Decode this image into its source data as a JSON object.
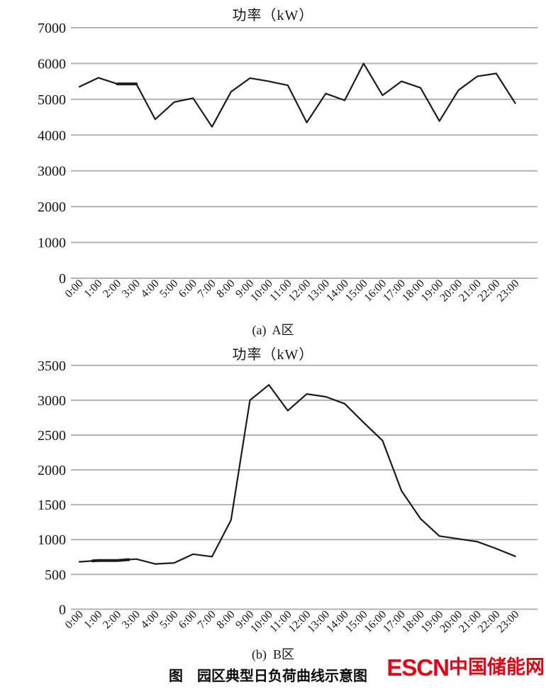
{
  "figure": {
    "caption": "图　园区典型日负荷曲线示意图"
  },
  "logo": {
    "escn": "ESCN",
    "cjk": "中国储能网",
    "color": "#e60012"
  },
  "chart_data": [
    {
      "type": "line",
      "title": "功率（kW）",
      "subtitle": "(a)  A区",
      "xlabel": "",
      "ylabel": "",
      "x": [
        "0:00",
        "1:00",
        "2:00",
        "3:00",
        "4:00",
        "5:00",
        "6:00",
        "7:00",
        "8:00",
        "9:00",
        "10:00",
        "11:00",
        "12:00",
        "13:00",
        "14:00",
        "15:00",
        "16:00",
        "17:00",
        "18:00",
        "19:00",
        "20:00",
        "21:00",
        "22:00",
        "23:00"
      ],
      "values": [
        5350,
        5600,
        5430,
        5430,
        4440,
        4920,
        5030,
        4230,
        5210,
        5590,
        5500,
        5390,
        4350,
        5160,
        4970,
        6000,
        5110,
        5500,
        5320,
        4390,
        5250,
        5640,
        5720,
        4890
      ],
      "ylim": [
        0,
        7000
      ],
      "ytick_step": 1000,
      "yticks": [
        0,
        1000,
        2000,
        3000,
        4000,
        5000,
        6000,
        7000
      ],
      "grid": "horizontal",
      "legend": "none",
      "line_color": "#1c1c1c",
      "grid_color": "#b3b3b3",
      "bold_segments": [
        [
          2,
          3
        ]
      ]
    },
    {
      "type": "line",
      "title": "功率（kW）",
      "subtitle": "(b)  B区",
      "xlabel": "",
      "ylabel": "",
      "x": [
        "0:00",
        "1:00",
        "2:00",
        "3:00",
        "4:00",
        "5:00",
        "6:00",
        "7:00",
        "8:00",
        "9:00",
        "10:00",
        "11:00",
        "12:00",
        "13:00",
        "14:00",
        "15:00",
        "16:00",
        "17:00",
        "18:00",
        "19:00",
        "20:00",
        "21:00",
        "22:00",
        "23:00"
      ],
      "values": [
        680,
        700,
        700,
        720,
        650,
        665,
        790,
        755,
        1280,
        3000,
        3220,
        2850,
        3090,
        3050,
        2950,
        2680,
        2420,
        1700,
        1300,
        1050,
        1010,
        970,
        870,
        760
      ],
      "ylim": [
        0,
        3500
      ],
      "ytick_step": 500,
      "yticks": [
        0,
        500,
        1000,
        1500,
        2000,
        2500,
        3000,
        3500
      ],
      "grid": "horizontal",
      "legend": "none",
      "line_color": "#1c1c1c",
      "grid_color": "#b3b3b3",
      "bold_segments": [
        [
          0.7,
          2.6
        ]
      ]
    }
  ]
}
